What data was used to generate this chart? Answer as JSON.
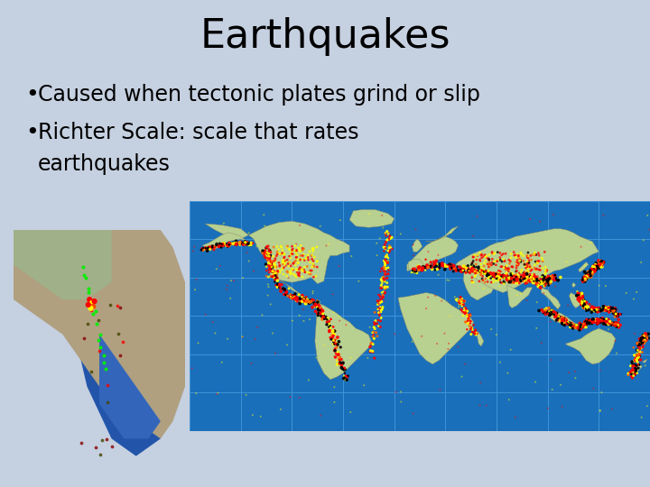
{
  "background_color": "#c5d0e0",
  "title": "Earthquakes",
  "title_fontsize": 32,
  "title_color": "#000000",
  "bullet1": "Caused when tectonic plates grind or slip",
  "bullet2": "Richter Scale: scale that rates",
  "bullet2_cont": "earthquakes",
  "bullet_fontsize": 17,
  "bullet_color": "#000000",
  "land_color": "#b8d090",
  "ocean_color": "#1a6fba",
  "grid_color": "#4499dd"
}
